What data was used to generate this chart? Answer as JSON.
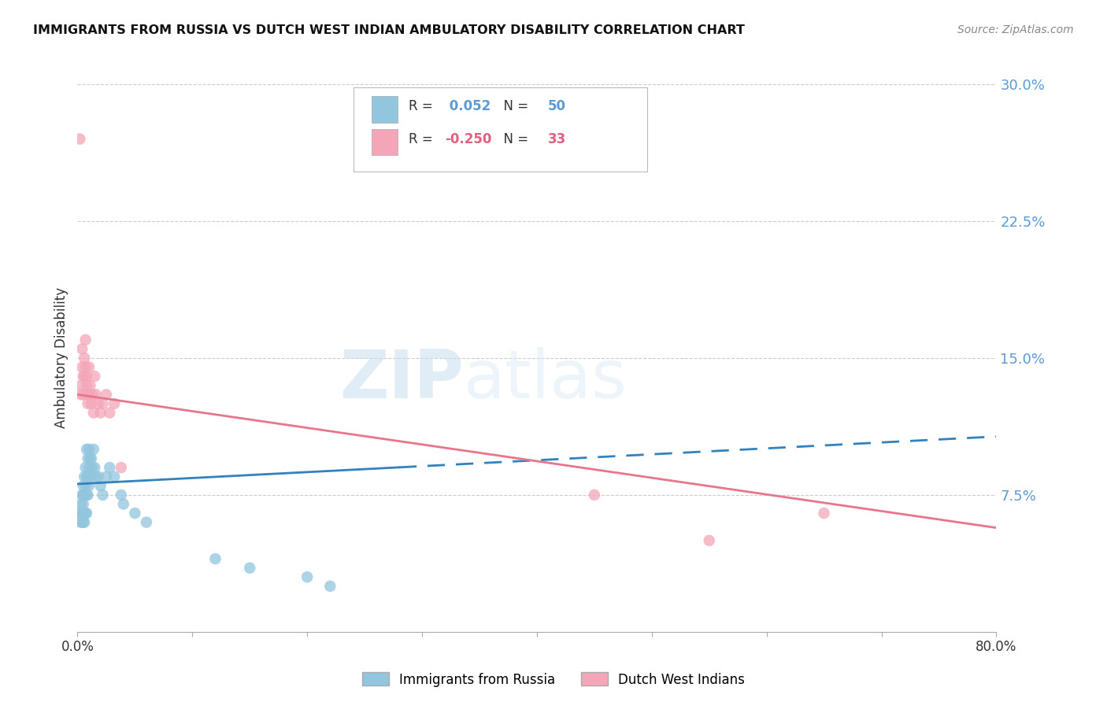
{
  "title": "IMMIGRANTS FROM RUSSIA VS DUTCH WEST INDIAN AMBULATORY DISABILITY CORRELATION CHART",
  "source": "Source: ZipAtlas.com",
  "ylabel": "Ambulatory Disability",
  "R1": 0.052,
  "N1": 50,
  "R2": -0.25,
  "N2": 33,
  "xlim": [
    0.0,
    0.8
  ],
  "ylim": [
    0.0,
    0.3
  ],
  "yticks": [
    0.075,
    0.15,
    0.225,
    0.3
  ],
  "ytick_labels": [
    "7.5%",
    "15.0%",
    "22.5%",
    "30.0%"
  ],
  "color_blue": "#92c5de",
  "color_pink": "#f4a6b8",
  "color_blue_line": "#3182bd",
  "color_pink_line": "#e8768a",
  "watermark_zip": "ZIP",
  "watermark_atlas": "atlas",
  "legend1_label": "Immigrants from Russia",
  "legend2_label": "Dutch West Indians",
  "blue_scatter_x": [
    0.002,
    0.003,
    0.003,
    0.004,
    0.004,
    0.004,
    0.005,
    0.005,
    0.005,
    0.005,
    0.005,
    0.006,
    0.006,
    0.006,
    0.006,
    0.007,
    0.007,
    0.007,
    0.007,
    0.008,
    0.008,
    0.008,
    0.008,
    0.009,
    0.009,
    0.009,
    0.01,
    0.01,
    0.01,
    0.011,
    0.011,
    0.012,
    0.013,
    0.014,
    0.015,
    0.016,
    0.018,
    0.02,
    0.022,
    0.025,
    0.028,
    0.032,
    0.038,
    0.04,
    0.05,
    0.06,
    0.12,
    0.15,
    0.2,
    0.22
  ],
  "blue_scatter_y": [
    0.065,
    0.07,
    0.06,
    0.075,
    0.065,
    0.06,
    0.075,
    0.07,
    0.065,
    0.08,
    0.06,
    0.085,
    0.075,
    0.065,
    0.06,
    0.09,
    0.08,
    0.075,
    0.065,
    0.1,
    0.085,
    0.075,
    0.065,
    0.095,
    0.085,
    0.075,
    0.1,
    0.09,
    0.08,
    0.095,
    0.085,
    0.095,
    0.09,
    0.1,
    0.09,
    0.085,
    0.085,
    0.08,
    0.075,
    0.085,
    0.09,
    0.085,
    0.075,
    0.07,
    0.065,
    0.06,
    0.04,
    0.035,
    0.03,
    0.025
  ],
  "pink_scatter_x": [
    0.002,
    0.003,
    0.003,
    0.004,
    0.004,
    0.005,
    0.005,
    0.006,
    0.006,
    0.007,
    0.007,
    0.008,
    0.008,
    0.009,
    0.009,
    0.01,
    0.01,
    0.011,
    0.012,
    0.013,
    0.014,
    0.015,
    0.016,
    0.018,
    0.02,
    0.022,
    0.025,
    0.028,
    0.032,
    0.038,
    0.45,
    0.55,
    0.65
  ],
  "pink_scatter_y": [
    0.27,
    0.135,
    0.13,
    0.155,
    0.145,
    0.14,
    0.13,
    0.15,
    0.14,
    0.16,
    0.145,
    0.14,
    0.135,
    0.13,
    0.125,
    0.145,
    0.13,
    0.135,
    0.125,
    0.13,
    0.12,
    0.14,
    0.13,
    0.125,
    0.12,
    0.125,
    0.13,
    0.12,
    0.125,
    0.09,
    0.075,
    0.05,
    0.065
  ],
  "blue_line_x0": 0.0,
  "blue_line_x_solid_end": 0.28,
  "blue_line_x_dash_start": 0.28,
  "blue_line_x1": 0.8,
  "blue_line_y0": 0.081,
  "blue_line_y1": 0.107,
  "pink_line_x0": 0.0,
  "pink_line_x1": 0.8,
  "pink_line_y0": 0.13,
  "pink_line_y1": 0.057
}
